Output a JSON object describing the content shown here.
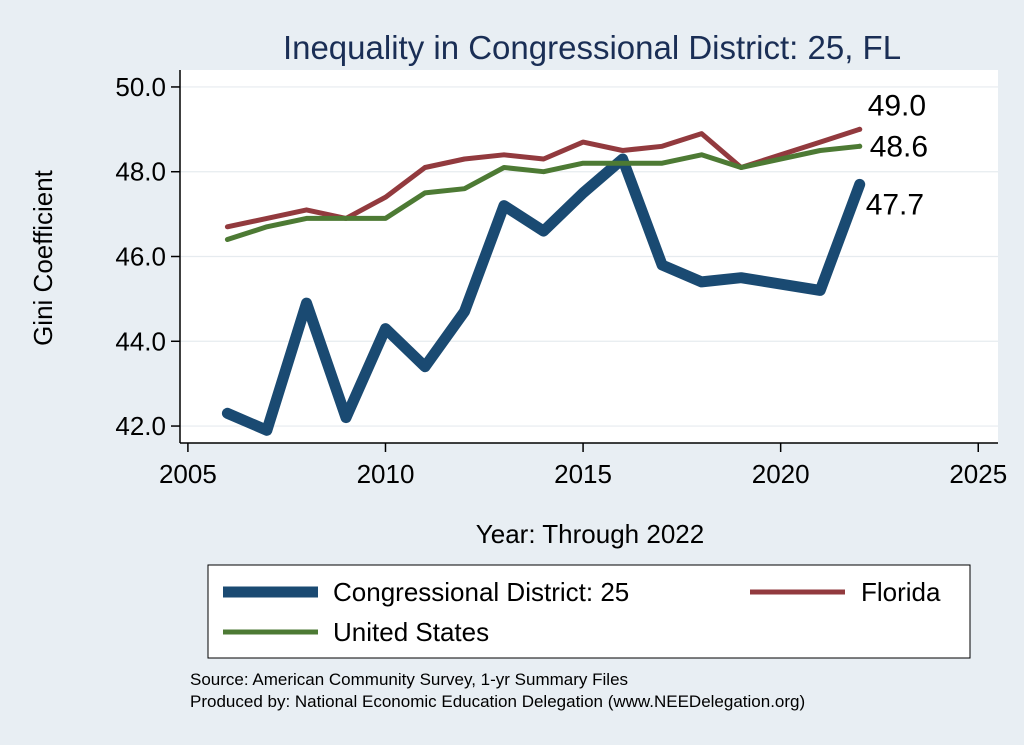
{
  "chart_data": {
    "type": "line",
    "title": "Inequality in Congressional District:  25, FL",
    "xlabel": "Year: Through 2022",
    "ylabel": "Gini Coefficient",
    "xlim": [
      2004.8,
      2025.5
    ],
    "ylim": [
      41.6,
      50.4
    ],
    "x_ticks": [
      2005,
      2010,
      2015,
      2020,
      2025
    ],
    "y_ticks": [
      42.0,
      44.0,
      46.0,
      48.0,
      50.0
    ],
    "grid": true,
    "legend_position": "bottom",
    "series": [
      {
        "name": "Congressional District:  25",
        "color": "#1a4a72",
        "x": [
          2006,
          2007,
          2008,
          2009,
          2010,
          2011,
          2012,
          2013,
          2014,
          2015,
          2016,
          2017,
          2018,
          2019,
          2021,
          2022
        ],
        "values": [
          42.3,
          41.9,
          44.9,
          42.2,
          44.3,
          43.4,
          44.7,
          47.2,
          46.6,
          47.5,
          48.3,
          45.8,
          45.4,
          45.5,
          45.2,
          47.7
        ],
        "end_label": "47.7"
      },
      {
        "name": "Florida",
        "color": "#923a3e",
        "x": [
          2006,
          2007,
          2008,
          2009,
          2010,
          2011,
          2012,
          2013,
          2014,
          2015,
          2016,
          2017,
          2018,
          2019,
          2021,
          2022
        ],
        "values": [
          46.7,
          46.9,
          47.1,
          46.9,
          47.4,
          48.1,
          48.3,
          48.4,
          48.3,
          48.7,
          48.5,
          48.6,
          48.9,
          48.1,
          48.7,
          49.0
        ],
        "end_label": "49.0"
      },
      {
        "name": "United States",
        "color": "#4d7a34",
        "x": [
          2006,
          2007,
          2008,
          2009,
          2010,
          2011,
          2012,
          2013,
          2014,
          2015,
          2016,
          2017,
          2018,
          2019,
          2021,
          2022
        ],
        "values": [
          46.4,
          46.7,
          46.9,
          46.9,
          46.9,
          47.5,
          47.6,
          48.1,
          48.0,
          48.2,
          48.2,
          48.2,
          48.4,
          48.1,
          48.5,
          48.6
        ],
        "end_label": "48.6"
      }
    ]
  },
  "notes": {
    "source": "Source: American Community Survey, 1-yr Summary Files",
    "produced_by": "Produced by: National Economic Education Delegation (www.NEEDelegation.org)"
  }
}
